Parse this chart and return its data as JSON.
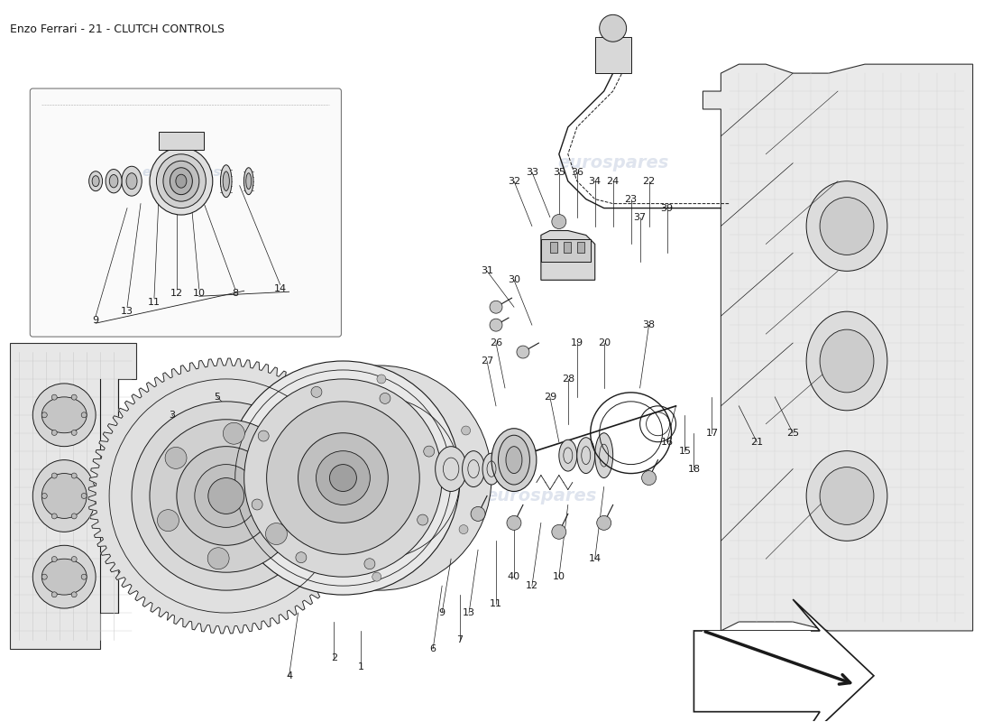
{
  "title": "Enzo Ferrari - 21 - CLUTCH CONTROLS",
  "title_fontsize": 9,
  "background_color": "#ffffff",
  "line_color": "#1a1a1a",
  "label_fontsize": 8,
  "watermark_text": "eurospares",
  "watermark_color": "#c5cfe0",
  "watermark_alpha": 0.55,
  "fig_width": 11.0,
  "fig_height": 8.0,
  "dpi": 100
}
